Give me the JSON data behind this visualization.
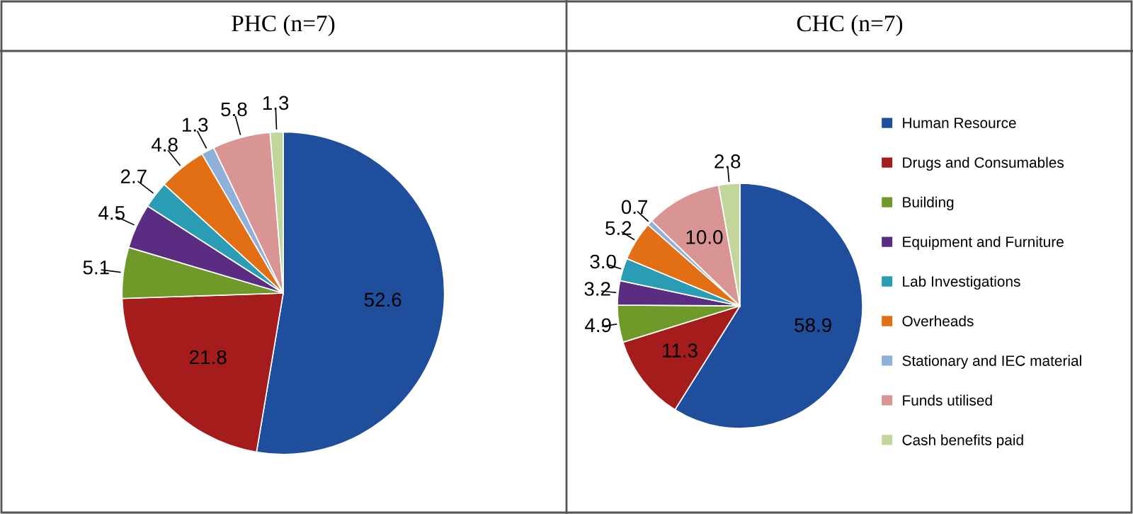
{
  "chart_data": [
    {
      "type": "pie",
      "title": "PHC (n=7)",
      "categories": [
        null,
        null,
        null,
        null,
        null,
        null,
        null,
        null,
        null
      ],
      "values": [
        52.6,
        21.8,
        5.1,
        4.5,
        2.7,
        4.8,
        1.3,
        5.8,
        1.3
      ],
      "value_labels": [
        "52.6",
        "21.8",
        "5.1",
        "4.5",
        "2.7",
        "4.8",
        "1.3",
        "5.8",
        "1.3"
      ],
      "colors": [
        "#1f4e9c",
        "#a51c1c",
        "#6f9a2a",
        "#5a2d82",
        "#2a9db5",
        "#e36f14",
        "#8fb0d8",
        "#d99594",
        "#c2d69b"
      ],
      "legend": false
    },
    {
      "type": "pie",
      "title": "CHC (n=7)",
      "categories": [
        "Human Resource",
        "Drugs and Consumables",
        "Building",
        "Equipment and Furniture",
        "Lab Investigations",
        "Overheads",
        "Stationary and IEC material",
        "Funds utilised",
        "Cash benefits paid"
      ],
      "values": [
        58.9,
        11.3,
        4.9,
        3.2,
        3.0,
        5.2,
        0.7,
        10.0,
        2.8
      ],
      "value_labels": [
        "58.9",
        "11.3",
        "4.9",
        "3.2",
        "3.0",
        "5.2",
        "0.7",
        "10.0",
        "2.8"
      ],
      "colors": [
        "#1f4e9c",
        "#a51c1c",
        "#6f9a2a",
        "#5a2d82",
        "#2a9db5",
        "#e36f14",
        "#8fb0d8",
        "#d99594",
        "#c2d69b"
      ],
      "legend": "right"
    }
  ]
}
